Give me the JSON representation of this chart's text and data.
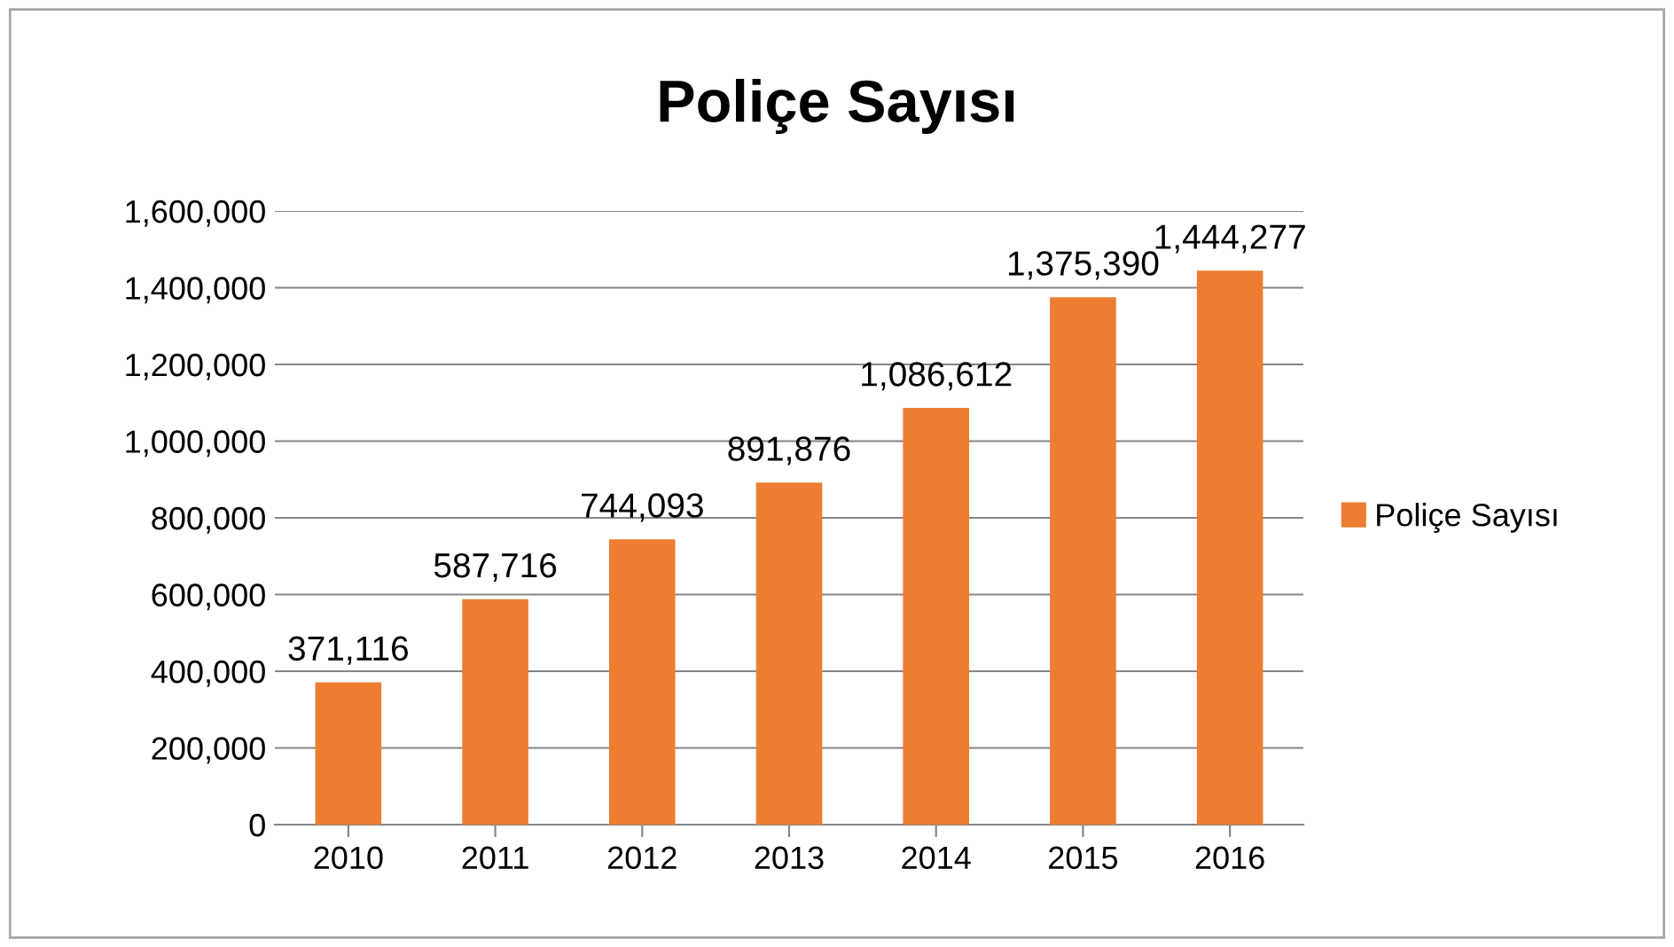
{
  "chart_data": {
    "type": "bar",
    "title": "Poliçe Sayısı",
    "categories": [
      "2010",
      "2011",
      "2012",
      "2013",
      "2014",
      "2015",
      "2016"
    ],
    "series": [
      {
        "name": "Poliçe Sayısı",
        "color": "#ed7d31",
        "values": [
          371116,
          587716,
          744093,
          891876,
          1086612,
          1375390,
          1444277
        ],
        "value_labels": [
          "371,116",
          "587,716",
          "744,093",
          "891,876",
          "1,086,612",
          "1,375,390",
          "1,444,277"
        ]
      }
    ],
    "ylim": [
      0,
      1600000
    ],
    "yticks": [
      {
        "value": 0,
        "label": "0"
      },
      {
        "value": 200000,
        "label": "200,000"
      },
      {
        "value": 400000,
        "label": "400,000"
      },
      {
        "value": 600000,
        "label": "600,000"
      },
      {
        "value": 800000,
        "label": "800,000"
      },
      {
        "value": 1000000,
        "label": "1,000,000"
      },
      {
        "value": 1200000,
        "label": "1,200,000"
      },
      {
        "value": 1400000,
        "label": "1,400,000"
      },
      {
        "value": 1600000,
        "label": "1,600,000"
      }
    ],
    "grid": "y",
    "legend": "right"
  }
}
